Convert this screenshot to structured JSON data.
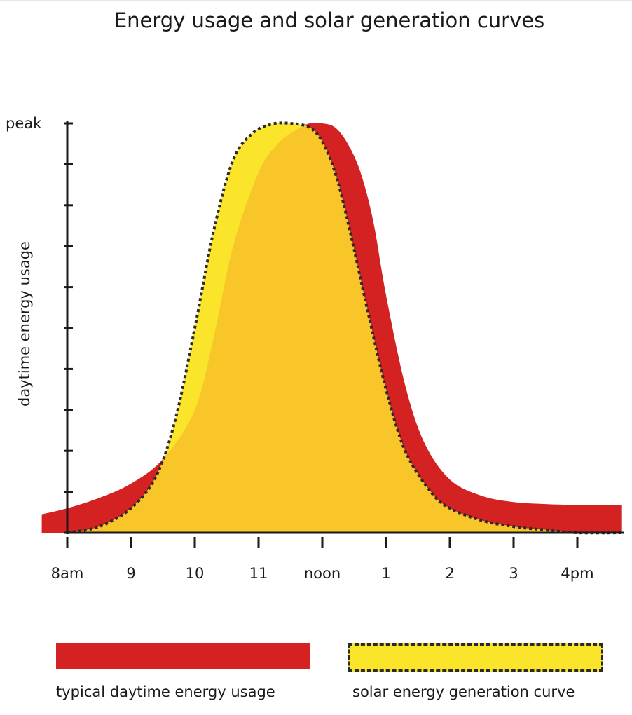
{
  "chart_data": {
    "type": "area",
    "title": "Energy usage and solar generation curves",
    "xlabel": "",
    "ylabel": "daytime energy usage",
    "x_tick_labels": [
      "8am",
      "9",
      "10",
      "11",
      "noon",
      "1",
      "2",
      "3",
      "4pm"
    ],
    "y_tick_labels": [
      {
        "value": 1.0,
        "label": "peak"
      }
    ],
    "y_minor_ticks": 10,
    "xlim": [
      7.6,
      16.7
    ],
    "ylim": [
      0,
      1
    ],
    "grid": false,
    "legend_position": "bottom",
    "series": [
      {
        "name": "typical daytime energy usage",
        "color": "#d42222",
        "x": [
          7.6,
          8.0,
          8.5,
          9.0,
          9.5,
          10.0,
          10.3,
          10.6,
          11.0,
          11.3,
          11.6,
          11.8,
          12.0,
          12.2,
          12.4,
          12.6,
          12.8,
          13.0,
          13.3,
          13.6,
          14.0,
          14.5,
          15.0,
          15.5,
          16.0,
          16.7
        ],
        "lower": [
          0.0,
          0.0,
          0.0,
          0.0,
          0.0,
          0.0,
          0.0,
          0.0,
          0.0,
          0.0,
          0.0,
          0.0,
          0.0,
          0.0,
          0.0,
          0.0,
          0.0,
          0.0,
          0.0,
          0.0,
          0.0,
          0.0,
          0.0,
          0.0,
          0.0,
          0.0
        ],
        "upper": [
          0.045,
          0.06,
          0.085,
          0.12,
          0.18,
          0.3,
          0.48,
          0.7,
          0.88,
          0.95,
          0.985,
          1.0,
          1.0,
          0.99,
          0.95,
          0.88,
          0.76,
          0.58,
          0.36,
          0.22,
          0.13,
          0.09,
          0.075,
          0.07,
          0.068,
          0.067
        ]
      },
      {
        "name": "solar energy generation curve",
        "color": "#fbe52a",
        "x": [
          8.0,
          8.5,
          9.0,
          9.4,
          9.7,
          10.0,
          10.3,
          10.6,
          10.9,
          11.2,
          11.5,
          11.8,
          12.0,
          12.2,
          12.4,
          12.7,
          13.0,
          13.3,
          13.7,
          14.0,
          14.5,
          15.0,
          15.5,
          16.0,
          16.7
        ],
        "values": [
          0.0,
          0.015,
          0.06,
          0.14,
          0.28,
          0.5,
          0.74,
          0.91,
          0.975,
          0.998,
          1.0,
          0.99,
          0.955,
          0.88,
          0.76,
          0.55,
          0.35,
          0.2,
          0.1,
          0.06,
          0.03,
          0.015,
          0.007,
          0.0,
          0.0
        ]
      }
    ],
    "overlap_color": "#f8c628"
  },
  "legend": {
    "usage_label": "typical daytime energy usage",
    "solar_label": "solar energy generation curve"
  }
}
